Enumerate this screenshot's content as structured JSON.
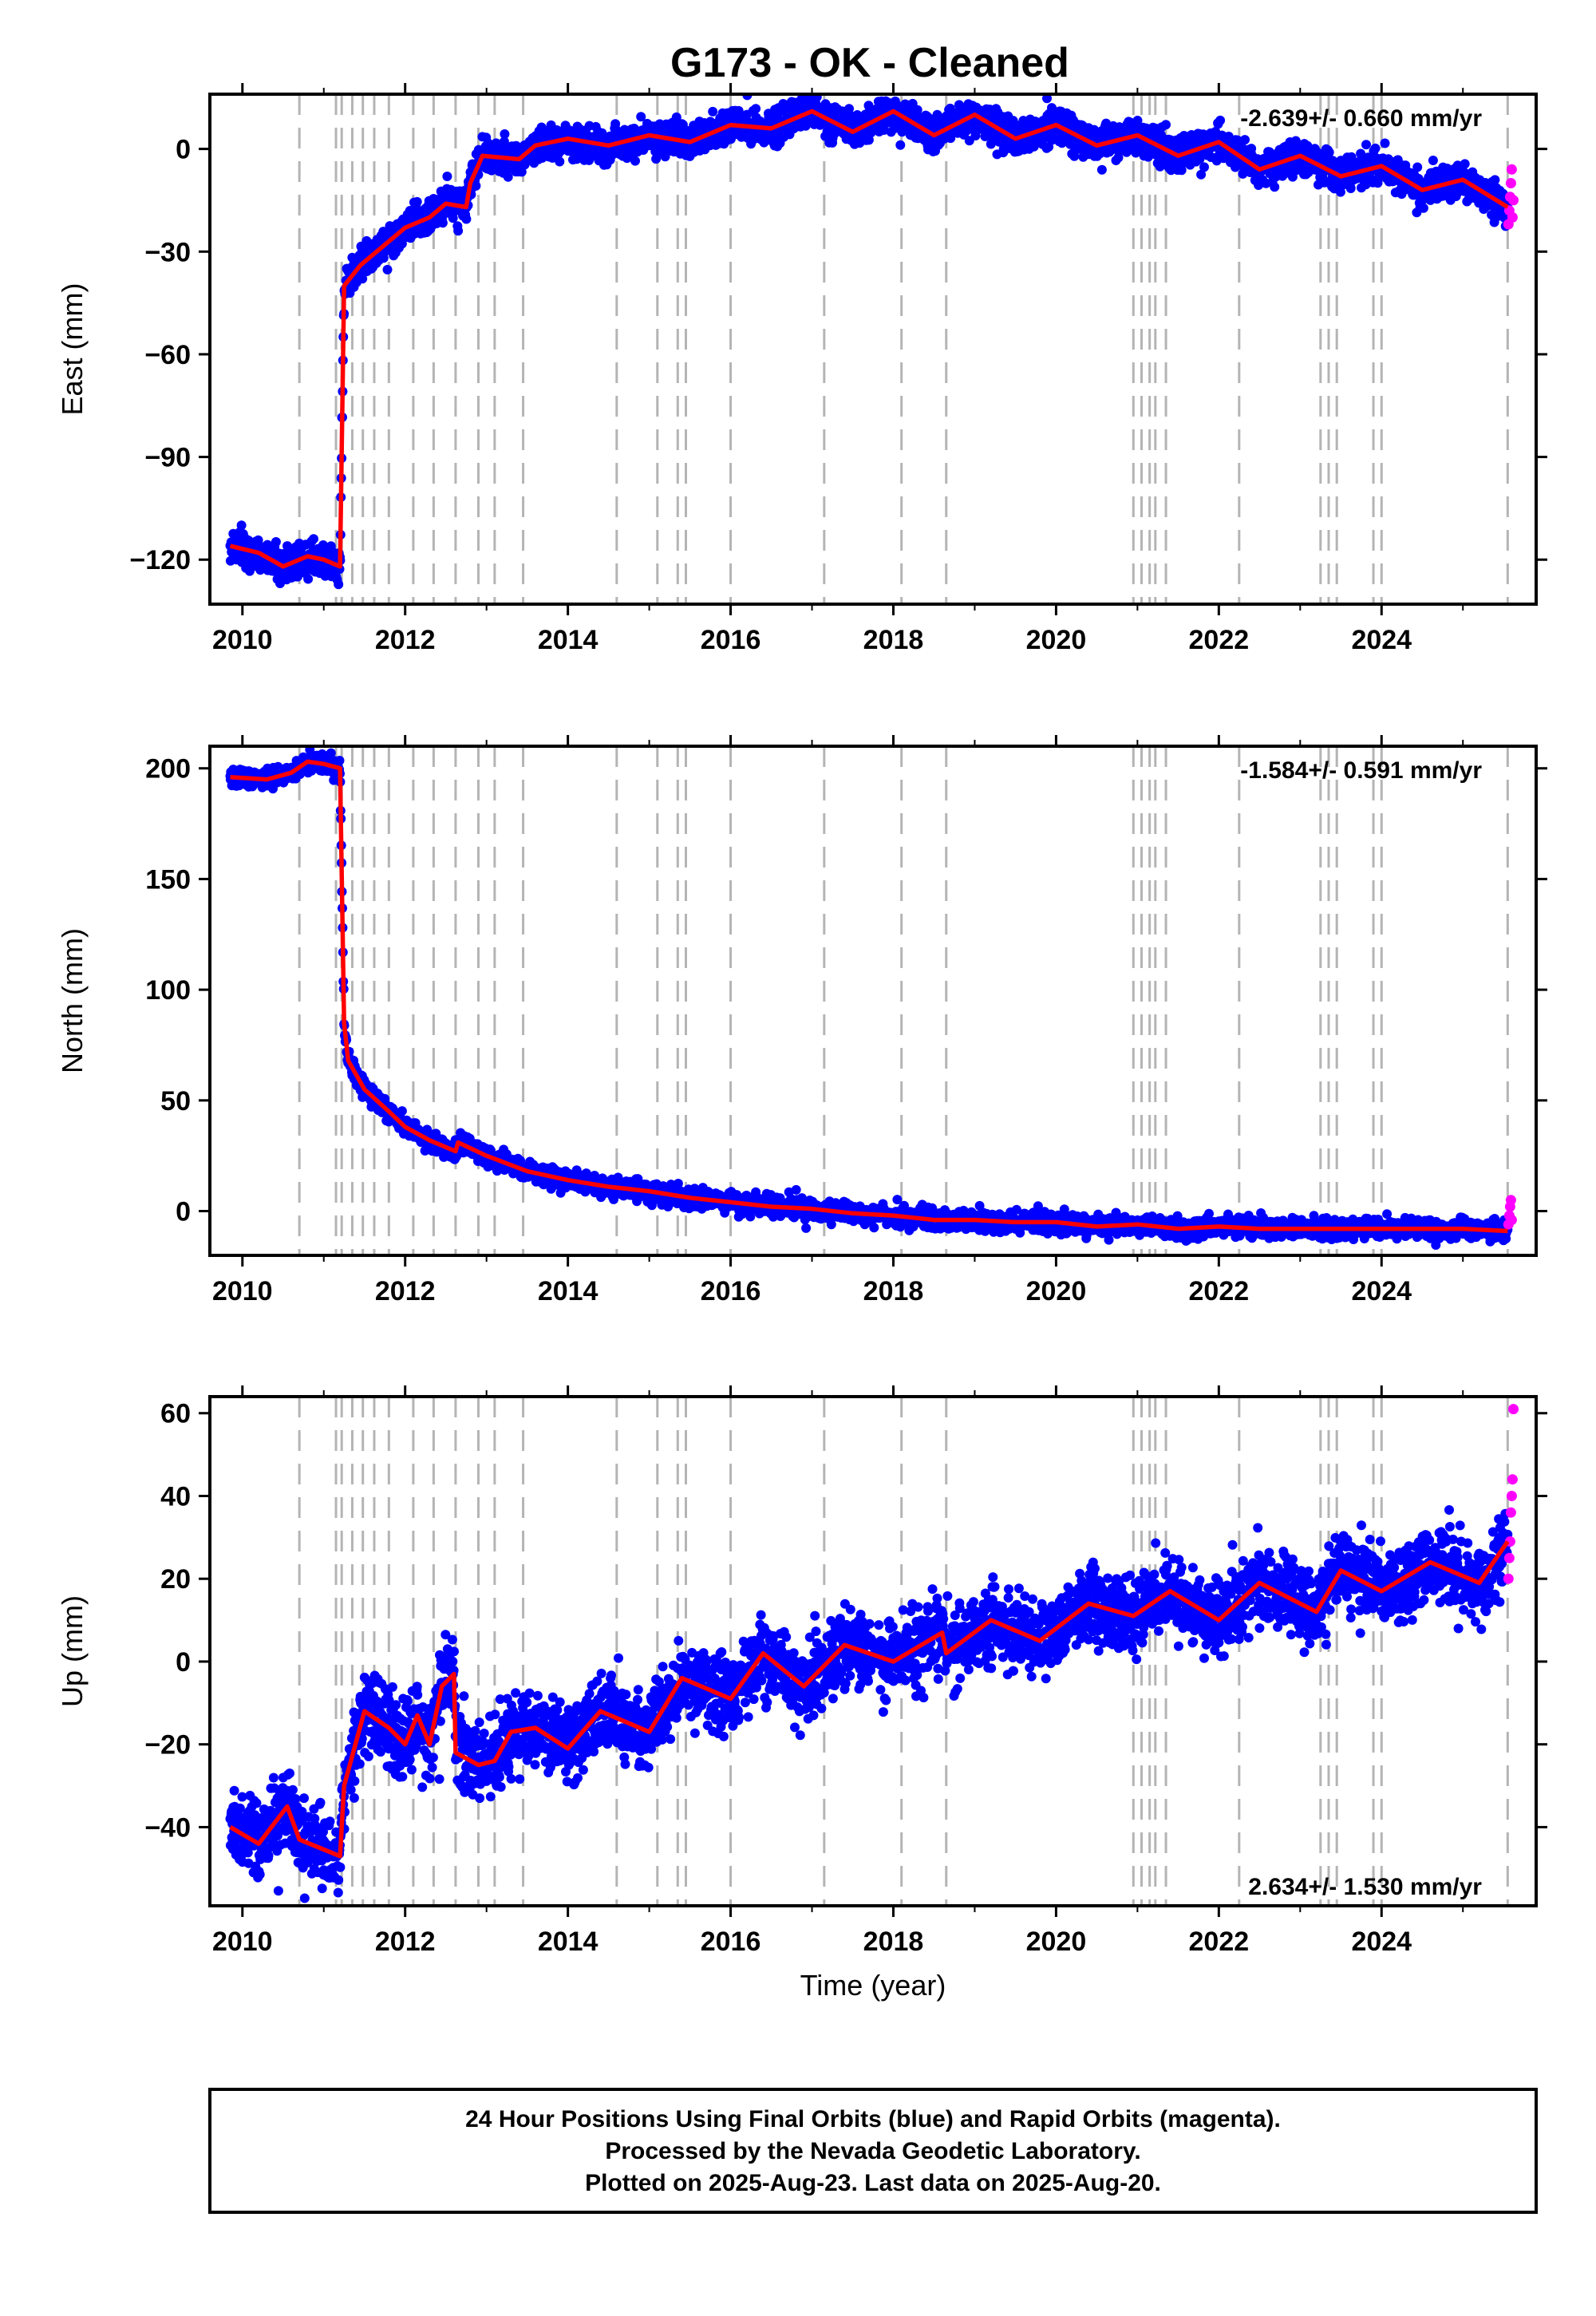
{
  "title": "G173  - OK - Cleaned",
  "colors": {
    "final": "#0000ff",
    "rapid": "#ff00ff",
    "model": "#ff0000",
    "event": "#b4b4b4",
    "axis": "#000000"
  },
  "event_lines": [
    2010.7,
    2011.15,
    2011.22,
    2011.35,
    2011.48,
    2011.62,
    2011.8,
    2012.1,
    2012.35,
    2012.62,
    2012.9,
    2013.1,
    2013.45,
    2014.6,
    2015.1,
    2015.35,
    2015.45,
    2016.0,
    2017.15,
    2018.1,
    2018.65,
    2020.95,
    2021.05,
    2021.15,
    2021.22,
    2021.35,
    2022.25,
    2023.25,
    2023.35,
    2023.45,
    2023.9,
    2024.0,
    2025.55
  ],
  "chart_data": [
    {
      "type": "scatter",
      "name": "east",
      "xlabel": "",
      "ylabel": "East (mm)",
      "xlim": [
        2009.6,
        2025.9
      ],
      "ylim": [
        -133,
        16
      ],
      "xticks": [
        "2010",
        "2012",
        "2014",
        "2016",
        "2018",
        "2020",
        "2022",
        "2024"
      ],
      "yticks": [
        "−120",
        "−90",
        "−60",
        "−30",
        "0"
      ],
      "rate_label": "-2.639+/- 0.660 mm/yr",
      "rate_position": "top-right",
      "model_curve": [
        [
          2009.85,
          -116
        ],
        [
          2010.2,
          -118
        ],
        [
          2010.5,
          -122
        ],
        [
          2010.8,
          -119
        ],
        [
          2011.0,
          -120
        ],
        [
          2011.2,
          -122
        ],
        [
          2011.25,
          -40
        ],
        [
          2011.45,
          -34
        ],
        [
          2011.7,
          -29
        ],
        [
          2012.0,
          -23
        ],
        [
          2012.3,
          -20
        ],
        [
          2012.5,
          -16
        ],
        [
          2012.75,
          -17
        ],
        [
          2012.8,
          -10
        ],
        [
          2012.95,
          -2
        ],
        [
          2013.4,
          -3
        ],
        [
          2013.6,
          1
        ],
        [
          2014.0,
          3
        ],
        [
          2014.5,
          1
        ],
        [
          2015.0,
          4
        ],
        [
          2015.5,
          2
        ],
        [
          2016.0,
          7
        ],
        [
          2016.5,
          6
        ],
        [
          2017.0,
          11
        ],
        [
          2017.5,
          5
        ],
        [
          2018.0,
          11
        ],
        [
          2018.5,
          4
        ],
        [
          2019.0,
          10
        ],
        [
          2019.5,
          3
        ],
        [
          2020.0,
          7
        ],
        [
          2020.5,
          1
        ],
        [
          2021.0,
          4
        ],
        [
          2021.5,
          -2
        ],
        [
          2022.0,
          2
        ],
        [
          2022.5,
          -6
        ],
        [
          2023.0,
          -2
        ],
        [
          2023.5,
          -8
        ],
        [
          2024.0,
          -5
        ],
        [
          2024.5,
          -12
        ],
        [
          2025.0,
          -9
        ],
        [
          2025.55,
          -17
        ]
      ],
      "noise_mm": 3.5,
      "rapid_points": [
        [
          2025.56,
          -22
        ],
        [
          2025.57,
          -18
        ],
        [
          2025.58,
          -14
        ],
        [
          2025.59,
          -10
        ],
        [
          2025.6,
          -6
        ],
        [
          2025.61,
          -20
        ],
        [
          2025.62,
          -15
        ]
      ]
    },
    {
      "type": "scatter",
      "name": "north",
      "xlabel": "",
      "ylabel": "North (mm)",
      "xlim": [
        2009.6,
        2025.9
      ],
      "ylim": [
        -20,
        210
      ],
      "xticks": [
        "2010",
        "2012",
        "2014",
        "2016",
        "2018",
        "2020",
        "2022",
        "2024"
      ],
      "yticks": [
        "0",
        "50",
        "100",
        "150",
        "200"
      ],
      "rate_label": "-1.584+/- 0.591 mm/yr",
      "rate_position": "top-right",
      "model_curve": [
        [
          2009.85,
          196
        ],
        [
          2010.3,
          195
        ],
        [
          2010.6,
          198
        ],
        [
          2010.8,
          203
        ],
        [
          2011.0,
          202
        ],
        [
          2011.2,
          200
        ],
        [
          2011.25,
          85
        ],
        [
          2011.3,
          68
        ],
        [
          2011.5,
          55
        ],
        [
          2011.8,
          45
        ],
        [
          2012.0,
          38
        ],
        [
          2012.3,
          32
        ],
        [
          2012.62,
          27
        ],
        [
          2012.65,
          31
        ],
        [
          2013.0,
          25
        ],
        [
          2013.5,
          18
        ],
        [
          2014.0,
          14
        ],
        [
          2014.5,
          11
        ],
        [
          2015.0,
          9
        ],
        [
          2015.5,
          6
        ],
        [
          2016.0,
          4
        ],
        [
          2016.5,
          2
        ],
        [
          2017.0,
          1
        ],
        [
          2017.5,
          -1
        ],
        [
          2018.0,
          -2
        ],
        [
          2018.5,
          -4
        ],
        [
          2019.0,
          -4
        ],
        [
          2019.5,
          -5
        ],
        [
          2020.0,
          -5
        ],
        [
          2020.5,
          -7
        ],
        [
          2021.0,
          -6
        ],
        [
          2021.5,
          -8
        ],
        [
          2022.0,
          -7
        ],
        [
          2022.5,
          -8
        ],
        [
          2023.0,
          -8
        ],
        [
          2023.5,
          -8
        ],
        [
          2024.0,
          -8
        ],
        [
          2024.5,
          -8
        ],
        [
          2025.0,
          -8
        ],
        [
          2025.55,
          -9
        ]
      ],
      "noise_mm": 3,
      "rapid_points": [
        [
          2025.56,
          -6
        ],
        [
          2025.57,
          -2
        ],
        [
          2025.58,
          2
        ],
        [
          2025.59,
          5
        ],
        [
          2025.6,
          -4
        ]
      ]
    },
    {
      "type": "scatter",
      "name": "up",
      "xlabel": "Time (year)",
      "ylabel": "Up (mm)",
      "xlim": [
        2009.6,
        2025.9
      ],
      "ylim": [
        -59,
        64
      ],
      "xticks": [
        "2010",
        "2012",
        "2014",
        "2016",
        "2018",
        "2020",
        "2022",
        "2024"
      ],
      "yticks": [
        "−40",
        "−20",
        "0",
        "20",
        "40",
        "60"
      ],
      "rate_label": "2.634+/- 1.530 mm/yr",
      "rate_position": "bottom-right",
      "model_curve": [
        [
          2009.85,
          -40
        ],
        [
          2010.2,
          -44
        ],
        [
          2010.55,
          -35
        ],
        [
          2010.7,
          -43
        ],
        [
          2011.2,
          -47
        ],
        [
          2011.25,
          -30
        ],
        [
          2011.5,
          -12
        ],
        [
          2011.8,
          -16
        ],
        [
          2012.0,
          -20
        ],
        [
          2012.15,
          -13
        ],
        [
          2012.3,
          -20
        ],
        [
          2012.45,
          -6
        ],
        [
          2012.6,
          -3
        ],
        [
          2012.62,
          -22
        ],
        [
          2012.9,
          -25
        ],
        [
          2013.1,
          -24
        ],
        [
          2013.3,
          -17
        ],
        [
          2013.6,
          -16
        ],
        [
          2014.0,
          -21
        ],
        [
          2014.4,
          -12
        ],
        [
          2015.0,
          -17
        ],
        [
          2015.4,
          -4
        ],
        [
          2016.0,
          -9
        ],
        [
          2016.4,
          2
        ],
        [
          2016.9,
          -6
        ],
        [
          2017.4,
          4
        ],
        [
          2018.0,
          0
        ],
        [
          2018.6,
          7
        ],
        [
          2018.65,
          2
        ],
        [
          2019.2,
          10
        ],
        [
          2019.8,
          5
        ],
        [
          2020.4,
          14
        ],
        [
          2020.95,
          11
        ],
        [
          2021.4,
          17
        ],
        [
          2022.0,
          10
        ],
        [
          2022.5,
          19
        ],
        [
          2023.2,
          12
        ],
        [
          2023.5,
          22
        ],
        [
          2024.0,
          17
        ],
        [
          2024.6,
          24
        ],
        [
          2025.2,
          19
        ],
        [
          2025.55,
          29
        ]
      ],
      "noise_mm": 6.5,
      "rapid_points": [
        [
          2025.56,
          20
        ],
        [
          2025.57,
          25
        ],
        [
          2025.58,
          29
        ],
        [
          2025.59,
          36
        ],
        [
          2025.6,
          40
        ],
        [
          2025.61,
          44
        ],
        [
          2025.62,
          61
        ]
      ]
    }
  ],
  "footer": {
    "line1": "24 Hour Positions Using Final Orbits (blue) and Rapid Orbits (magenta).",
    "line2": "Processed by the Nevada Geodetic Laboratory.",
    "line3": "Plotted on 2025-Aug-23. Last data on 2025-Aug-20."
  }
}
